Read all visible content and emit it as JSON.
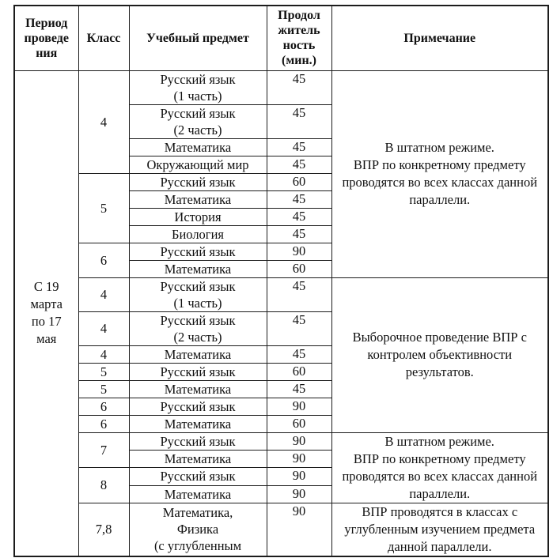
{
  "header": {
    "period": "Период\nпроведе\nния",
    "class": "Класс",
    "subject": "Учебный предмет",
    "duration": "Продол\nжитель\nность\n(мин.)",
    "note": "Примечание"
  },
  "period": "С 19\nмарта\nпо 17\nмая",
  "class_labels": [
    "4",
    "5",
    "6",
    "4",
    "4",
    "4",
    "5",
    "5",
    "6",
    "6",
    "7",
    "8",
    "7,8"
  ],
  "notes": {
    "n1": "В штатном режиме.\nВПР по конкретному предмету проводятся во всех классах данной параллели.",
    "n2": "Выборочное проведение ВПР с контролем объективности результатов.",
    "n3": "В штатном режиме.\nВПР по конкретному предмету проводятся во всех классах данной параллели.",
    "n4": "ВПР проводятся в классах с углубленным изучением предмета данной параллели."
  },
  "rows": [
    {
      "subject": "Русский язык\n(1 часть)",
      "duration": "45"
    },
    {
      "subject": "Русский язык\n(2 часть)",
      "duration": "45"
    },
    {
      "subject": "Математика",
      "duration": "45"
    },
    {
      "subject": "Окружающий мир",
      "duration": "45"
    },
    {
      "subject": "Русский язык",
      "duration": "60"
    },
    {
      "subject": "Математика",
      "duration": "45"
    },
    {
      "subject": "История",
      "duration": "45"
    },
    {
      "subject": "Биология",
      "duration": "45"
    },
    {
      "subject": "Русский язык",
      "duration": "90"
    },
    {
      "subject": "Математика",
      "duration": "60"
    },
    {
      "subject": "Русский язык\n(1 часть)",
      "duration": "45"
    },
    {
      "subject": "Русский язык\n(2 часть)",
      "duration": "45"
    },
    {
      "subject": "Математика",
      "duration": "45"
    },
    {
      "subject": "Русский язык",
      "duration": "60"
    },
    {
      "subject": "Математика",
      "duration": "45"
    },
    {
      "subject": "Русский язык",
      "duration": "90"
    },
    {
      "subject": "Математика",
      "duration": "60"
    },
    {
      "subject": "Русский язык",
      "duration": "90"
    },
    {
      "subject": "Математика",
      "duration": "90"
    },
    {
      "subject": "Русский язык",
      "duration": "90"
    },
    {
      "subject": "Математика",
      "duration": "90"
    },
    {
      "subject": "Математика,\nФизика\n(с углубленным",
      "duration": "90"
    }
  ]
}
